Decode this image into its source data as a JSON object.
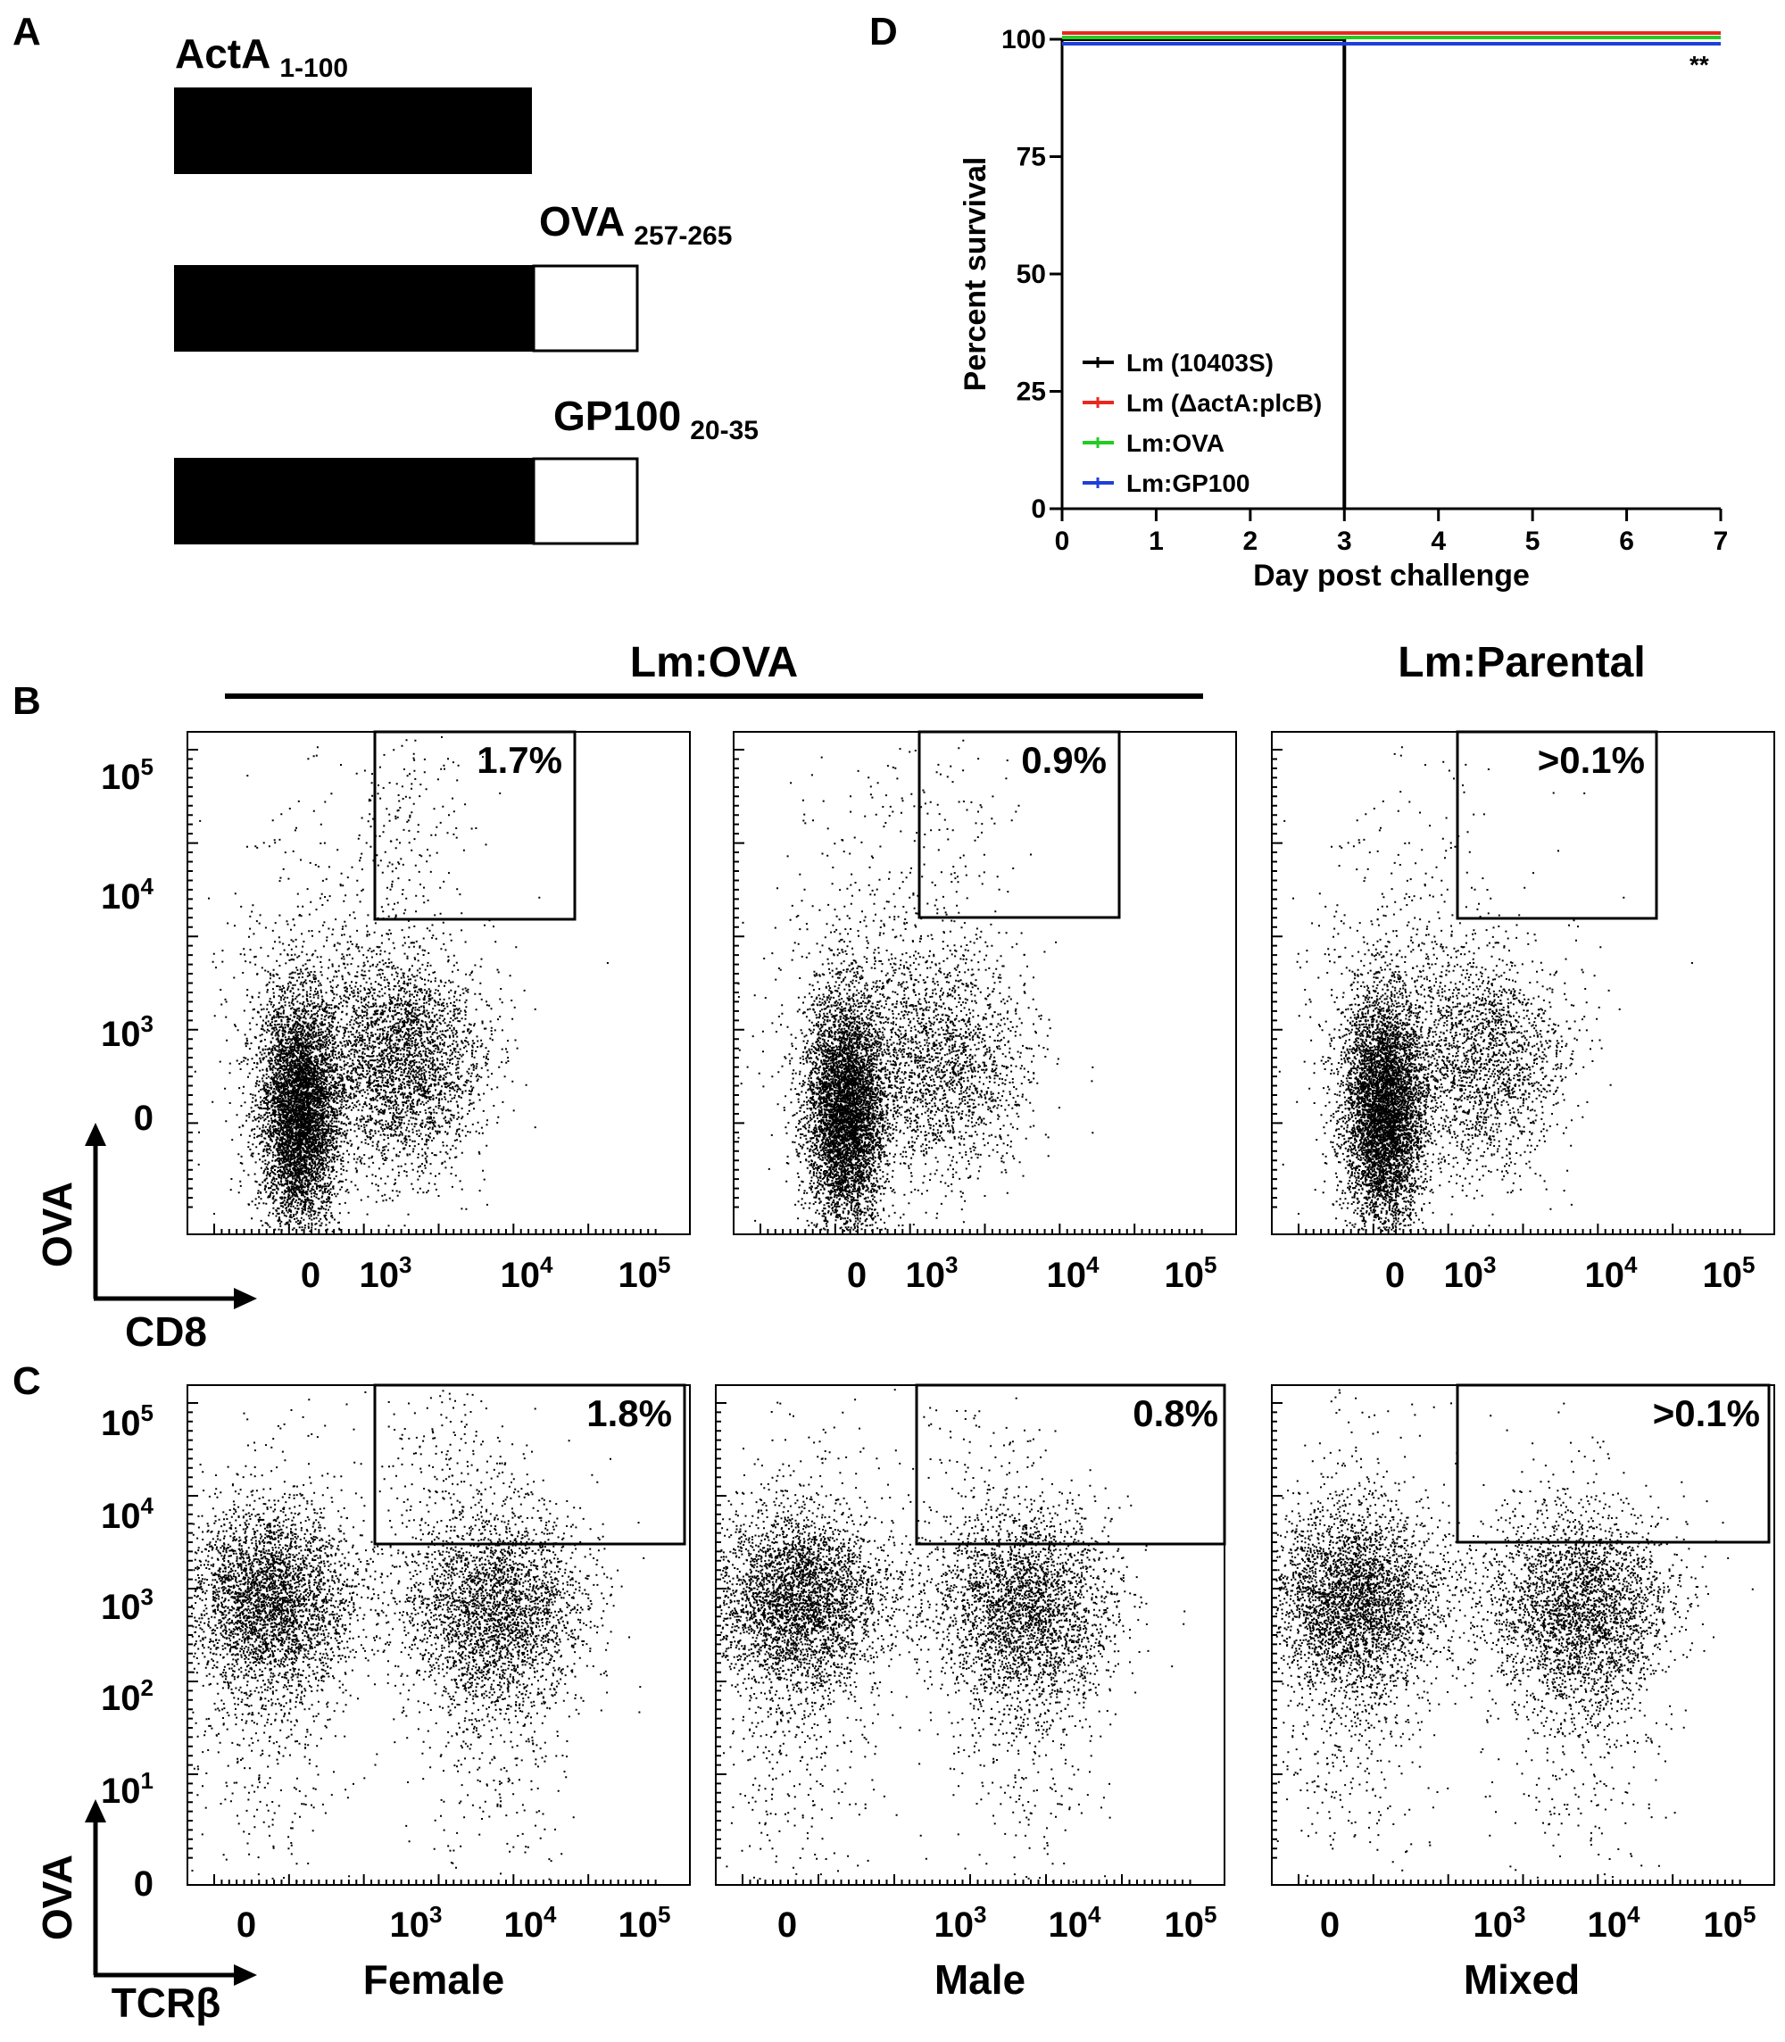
{
  "panels": {
    "A": {
      "letter": "A",
      "constructs": [
        {
          "name": "ActA",
          "sub": "1-100"
        },
        {
          "name": "OVA",
          "sub": "257-265"
        },
        {
          "name": "GP100",
          "sub": "20-35"
        }
      ]
    },
    "B": {
      "letter": "B",
      "group_labels": [
        "Lm:OVA",
        "Lm:Parental"
      ],
      "y_axis": "OVA",
      "x_axis": "CD8",
      "percents": [
        "1.7%",
        "0.9%",
        ">0.1%"
      ],
      "y_ticks": [
        "10",
        "10",
        "10",
        "0"
      ],
      "y_exps": [
        "5",
        "4",
        "3",
        ""
      ],
      "x_ticks": [
        "0",
        "10",
        "10",
        "10"
      ],
      "x_exps": [
        "",
        "3",
        "4",
        "5"
      ]
    },
    "C": {
      "letter": "C",
      "y_axis": "OVA",
      "x_axis": "TCRβ",
      "percents": [
        "1.8%",
        "0.8%",
        ">0.1%"
      ],
      "column_labels": [
        "Female",
        "Male",
        "Mixed"
      ],
      "y_ticks": [
        "10",
        "10",
        "10",
        "10",
        "10",
        "0"
      ],
      "y_exps": [
        "5",
        "4",
        "3",
        "2",
        "1",
        ""
      ],
      "x_ticks": [
        "0",
        "10",
        "10",
        "10"
      ],
      "x_exps": [
        "",
        "3",
        "4",
        "5"
      ]
    },
    "D": {
      "letter": "D",
      "significance": "**"
    }
  },
  "chart_data": {
    "type": "line",
    "xlabel": "Day post challenge",
    "ylabel": "Percent survival",
    "xlim": [
      0,
      7
    ],
    "ylim": [
      0,
      100
    ],
    "x_ticks": [
      "0",
      "1",
      "2",
      "3",
      "4",
      "5",
      "6",
      "7"
    ],
    "y_ticks": [
      "0",
      "25",
      "50",
      "75",
      "100"
    ],
    "legend_position": "bottom-left",
    "series": [
      {
        "name": "Lm (10403S)",
        "color": "#000000",
        "x": [
          0,
          3,
          3
        ],
        "y": [
          100,
          100,
          0
        ]
      },
      {
        "name": "Lm (ΔactA:plcB)",
        "color": "#e8281e",
        "x": [
          0,
          7
        ],
        "y": [
          100,
          100
        ]
      },
      {
        "name": "Lm:OVA",
        "color": "#22cc22",
        "x": [
          0,
          7
        ],
        "y": [
          100,
          100
        ]
      },
      {
        "name": "Lm:GP100",
        "color": "#1f3fd8",
        "x": [
          0,
          7
        ],
        "y": [
          100,
          100
        ]
      }
    ]
  }
}
